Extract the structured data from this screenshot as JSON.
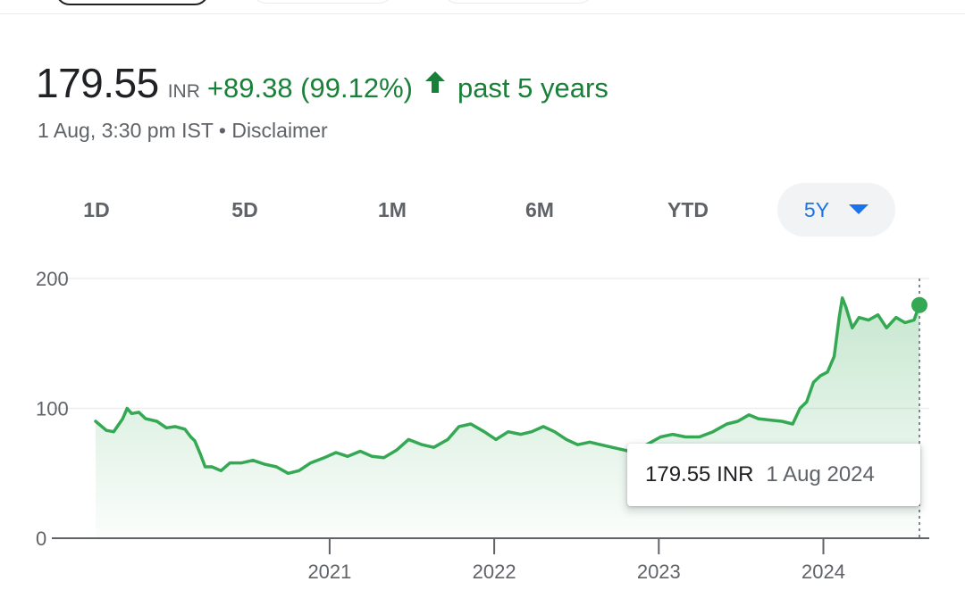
{
  "quote": {
    "price": "179.55",
    "currency": "INR",
    "change": "+89.38 (99.12%)",
    "direction_icon": "arrow-up-icon",
    "period": "past 5 years",
    "timestamp": "1 Aug, 3:30 pm IST",
    "separator": "•",
    "disclaimer": "Disclaimer",
    "color_positive": "#188038"
  },
  "ranges": {
    "items": [
      {
        "label": "1D"
      },
      {
        "label": "5D"
      },
      {
        "label": "1M"
      },
      {
        "label": "6M"
      },
      {
        "label": "YTD"
      },
      {
        "label": "5Y"
      }
    ],
    "selected": "5Y",
    "selected_icon": "caret-down-icon"
  },
  "tooltip": {
    "value": "179.55 INR",
    "date": "1 Aug 2024"
  },
  "chart_data": {
    "type": "area",
    "title": "",
    "xlabel": "",
    "ylabel": "",
    "ylim": [
      0,
      200
    ],
    "y_ticks": [
      "0",
      "100",
      "200"
    ],
    "x_ticks": [
      "2021",
      "2022",
      "2023",
      "2024"
    ],
    "grid": true,
    "line_color": "#34a853",
    "fill_color": "#34a853",
    "series": [
      {
        "values": [
          [
            "2019-08-01",
            90
          ],
          [
            "2019-08-25",
            83
          ],
          [
            "2019-09-10",
            82
          ],
          [
            "2019-09-30",
            92
          ],
          [
            "2019-10-10",
            100
          ],
          [
            "2019-10-20",
            96
          ],
          [
            "2019-11-05",
            97
          ],
          [
            "2019-11-20",
            92
          ],
          [
            "2019-12-15",
            90
          ],
          [
            "2020-01-05",
            85
          ],
          [
            "2020-01-25",
            86
          ],
          [
            "2020-02-15",
            84
          ],
          [
            "2020-02-28",
            78
          ],
          [
            "2020-03-08",
            75
          ],
          [
            "2020-03-20",
            65
          ],
          [
            "2020-03-31",
            55
          ],
          [
            "2020-04-15",
            55
          ],
          [
            "2020-05-05",
            52
          ],
          [
            "2020-05-25",
            58
          ],
          [
            "2020-06-20",
            58
          ],
          [
            "2020-07-15",
            60
          ],
          [
            "2020-08-10",
            57
          ],
          [
            "2020-09-05",
            55
          ],
          [
            "2020-10-01",
            50
          ],
          [
            "2020-10-25",
            52
          ],
          [
            "2020-11-20",
            58
          ],
          [
            "2020-12-20",
            62
          ],
          [
            "2021-01-15",
            66
          ],
          [
            "2021-02-10",
            63
          ],
          [
            "2021-03-10",
            67
          ],
          [
            "2021-04-05",
            63
          ],
          [
            "2021-05-01",
            62
          ],
          [
            "2021-05-30",
            68
          ],
          [
            "2021-06-25",
            76
          ],
          [
            "2021-07-25",
            72
          ],
          [
            "2021-08-20",
            70
          ],
          [
            "2021-09-20",
            76
          ],
          [
            "2021-10-15",
            86
          ],
          [
            "2021-11-10",
            88
          ],
          [
            "2021-12-10",
            82
          ],
          [
            "2022-01-05",
            76
          ],
          [
            "2022-02-01",
            82
          ],
          [
            "2022-03-01",
            80
          ],
          [
            "2022-03-25",
            82
          ],
          [
            "2022-04-20",
            86
          ],
          [
            "2022-05-15",
            82
          ],
          [
            "2022-06-10",
            76
          ],
          [
            "2022-07-05",
            72
          ],
          [
            "2022-08-01",
            74
          ],
          [
            "2022-08-25",
            72
          ],
          [
            "2022-09-20",
            70
          ],
          [
            "2022-10-15",
            68
          ],
          [
            "2022-11-10",
            66
          ],
          [
            "2022-12-05",
            72
          ],
          [
            "2023-01-05",
            78
          ],
          [
            "2023-02-01",
            80
          ],
          [
            "2023-03-01",
            78
          ],
          [
            "2023-04-01",
            78
          ],
          [
            "2023-05-01",
            82
          ],
          [
            "2023-06-01",
            88
          ],
          [
            "2023-06-25",
            90
          ],
          [
            "2023-07-20",
            95
          ],
          [
            "2023-08-10",
            92
          ],
          [
            "2023-09-05",
            91
          ],
          [
            "2023-10-01",
            90
          ],
          [
            "2023-10-25",
            88
          ],
          [
            "2023-11-10",
            100
          ],
          [
            "2023-11-25",
            105
          ],
          [
            "2023-12-10",
            120
          ],
          [
            "2023-12-25",
            125
          ],
          [
            "2024-01-10",
            128
          ],
          [
            "2024-01-25",
            140
          ],
          [
            "2024-02-05",
            170
          ],
          [
            "2024-02-12",
            185
          ],
          [
            "2024-02-20",
            178
          ],
          [
            "2024-03-05",
            162
          ],
          [
            "2024-03-20",
            170
          ],
          [
            "2024-04-10",
            168
          ],
          [
            "2024-05-01",
            172
          ],
          [
            "2024-05-20",
            162
          ],
          [
            "2024-06-10",
            170
          ],
          [
            "2024-06-30",
            166
          ],
          [
            "2024-07-20",
            168
          ],
          [
            "2024-08-01",
            179.55
          ]
        ]
      }
    ]
  }
}
